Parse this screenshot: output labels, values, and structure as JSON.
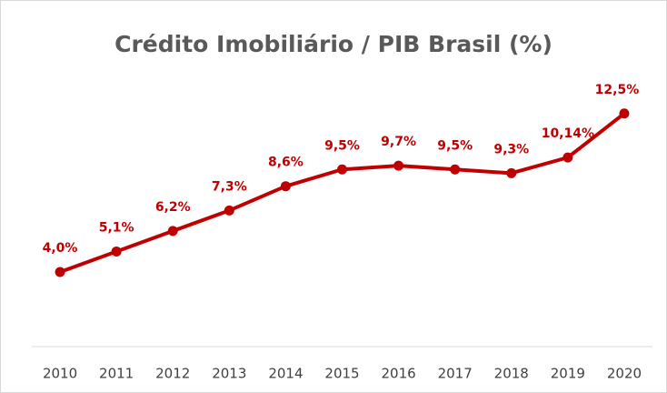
{
  "chart_data": {
    "type": "line",
    "title": "Crédito Imobiliário / PIB Brasil (%)",
    "categories": [
      "2010",
      "2011",
      "2012",
      "2013",
      "2014",
      "2015",
      "2016",
      "2017",
      "2018",
      "2019",
      "2020"
    ],
    "series": [
      {
        "name": "Crédito Imobiliário / PIB Brasil",
        "color": "#c00000",
        "values": [
          4.0,
          5.1,
          6.2,
          7.3,
          8.6,
          9.5,
          9.7,
          9.5,
          9.3,
          10.14,
          12.5
        ],
        "value_labels": [
          "4,0%",
          "5,1%",
          "6,2%",
          "7,3%",
          "8,6%",
          "9,5%",
          "9,7%",
          "9,5%",
          "9,3%",
          "10,14%",
          "12,5%"
        ]
      }
    ],
    "ylim": [
      0,
      14
    ]
  }
}
